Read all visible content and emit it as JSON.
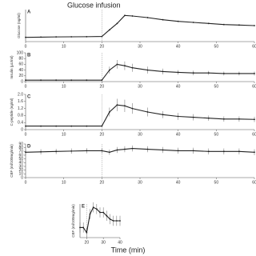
{
  "annotation": {
    "text": "Glucose infusion",
    "x": 20
  },
  "xlabel": "Time (min)",
  "chart_data": [
    {
      "type": "line",
      "label": "A",
      "ylabel": "Glucose (ng/ml)",
      "color": "#222",
      "x": [
        0,
        4,
        8,
        12,
        16,
        20,
        22,
        24,
        26,
        28,
        32,
        36,
        40,
        44,
        48,
        52,
        56,
        60
      ],
      "values": [
        40,
        42,
        44,
        45,
        46,
        48,
        110,
        170,
        245,
        240,
        225,
        205,
        190,
        180,
        170,
        160,
        155,
        150
      ],
      "errors": [
        3,
        3,
        3,
        3,
        3,
        3,
        5,
        5,
        6,
        6,
        6,
        6,
        6,
        5,
        5,
        5,
        5,
        5
      ],
      "xlim": [
        0,
        60
      ],
      "xticks": [
        0,
        10,
        20,
        30,
        40,
        50,
        60
      ],
      "ylim": [
        0,
        300
      ]
    },
    {
      "type": "line",
      "label": "B",
      "ylabel": "Insulin (μU/ml)",
      "color": "#222",
      "x": [
        0,
        4,
        8,
        12,
        16,
        20,
        22,
        24,
        26,
        28,
        32,
        36,
        40,
        44,
        48,
        52,
        56,
        60
      ],
      "values": [
        5,
        5,
        5,
        5,
        5,
        5,
        40,
        60,
        55,
        48,
        40,
        35,
        32,
        30,
        30,
        28,
        28,
        28
      ],
      "errors": [
        2,
        2,
        2,
        2,
        2,
        2,
        12,
        15,
        15,
        14,
        12,
        10,
        8,
        8,
        7,
        7,
        7,
        7
      ],
      "xlim": [
        0,
        60
      ],
      "xticks": [
        0,
        10,
        20,
        30,
        40,
        50,
        60
      ],
      "ylim": [
        0,
        100
      ],
      "yticks": [
        0,
        20,
        40,
        60,
        80,
        100
      ]
    },
    {
      "type": "line",
      "label": "C",
      "ylabel": "C-peptide (ng/ml)",
      "color": "#222",
      "x": [
        0,
        4,
        8,
        12,
        16,
        20,
        22,
        24,
        26,
        28,
        32,
        36,
        40,
        44,
        48,
        52,
        56,
        60
      ],
      "values": [
        0.2,
        0.2,
        0.2,
        0.2,
        0.2,
        0.2,
        1,
        1.4,
        1.35,
        1.2,
        1,
        0.85,
        0.75,
        0.7,
        0.65,
        0.6,
        0.6,
        0.58
      ],
      "errors": [
        0.05,
        0.05,
        0.05,
        0.05,
        0.05,
        0.05,
        0.25,
        0.35,
        0.35,
        0.3,
        0.25,
        0.2,
        0.2,
        0.18,
        0.15,
        0.15,
        0.15,
        0.15
      ],
      "xlim": [
        0,
        60
      ],
      "xticks": [
        0,
        10,
        20,
        30,
        40,
        50,
        60
      ],
      "ylim": [
        0,
        2
      ],
      "yticks": [
        0,
        0.4,
        0.8,
        1.2,
        1.6,
        {
          "value": 2,
          "label": "2.0"
        }
      ]
    },
    {
      "type": "line",
      "label": "D",
      "ylabel": "CBF (ml/100mg/min)",
      "color": "#222",
      "x": [
        0,
        4,
        8,
        12,
        16,
        20,
        22,
        24,
        26,
        28,
        32,
        36,
        40,
        44,
        48,
        52,
        56,
        60
      ],
      "values": [
        68,
        69,
        70,
        71,
        72,
        72,
        68,
        74,
        76,
        78,
        76,
        74,
        72,
        72,
        70,
        70,
        70,
        68
      ],
      "errors": [
        7,
        7,
        7,
        7,
        7,
        7,
        7,
        8,
        8,
        8,
        8,
        8,
        8,
        8,
        8,
        8,
        8,
        8
      ],
      "xlim": [
        0,
        60
      ],
      "xticks": [
        0,
        10,
        20,
        30,
        40,
        50,
        60
      ],
      "ylim": [
        0,
        90
      ],
      "yticks": [
        0,
        10,
        20,
        30,
        40,
        50,
        60,
        70,
        80,
        90
      ]
    },
    {
      "type": "line",
      "label": "E",
      "ylabel": "CBF (ml/100mg/min)",
      "color": "#222",
      "x": [
        16,
        18,
        20,
        22,
        24,
        26,
        28,
        30,
        32,
        34,
        36,
        38,
        40
      ],
      "values": [
        0.6,
        0.6,
        0.3,
        1.4,
        1.8,
        1.7,
        1.5,
        1.5,
        1.3,
        1.1,
        1,
        1,
        1
      ],
      "errors": [
        0.3,
        0.3,
        0.3,
        0.3,
        0.3,
        0.3,
        0.3,
        0.3,
        0.3,
        0.3,
        0.3,
        0.3,
        0.3
      ],
      "xlim": [
        16,
        40
      ],
      "xticks": [
        20,
        30,
        40
      ],
      "ylim": [
        0,
        2
      ]
    }
  ]
}
